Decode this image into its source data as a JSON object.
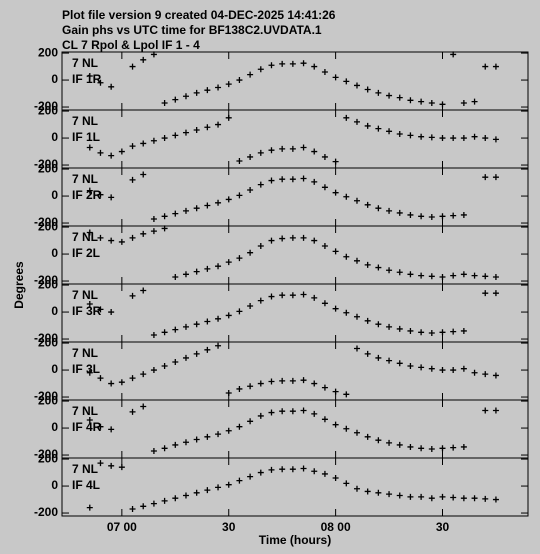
{
  "title_lines": [
    "Plot file version 9  created 04-DEC-2025 14:41:26",
    "Gain phs vs UTC time for BF138C2.UVDATA.1",
    "CL 7  Rpol & Lpol  IF 1 - 4"
  ],
  "xlabel": "Time (hours)",
  "ylabel": "Degrees",
  "chart_data": [
    {
      "type": "scatter",
      "label": "7 NL",
      "sublabel": "IF 1R",
      "x": [
        6.85,
        6.9,
        6.95,
        7.0,
        7.05,
        7.1,
        7.15,
        7.2,
        7.25,
        7.3,
        7.35,
        7.4,
        7.45,
        7.5,
        7.55,
        7.6,
        7.65,
        7.7,
        7.75,
        7.8,
        7.85,
        7.9,
        7.95,
        8.0,
        8.05,
        8.1,
        8.15,
        8.2,
        8.25,
        8.3,
        8.35,
        8.4,
        8.45,
        8.5,
        8.55,
        8.6,
        8.65,
        8.7,
        8.75
      ],
      "values": [
        30,
        -20,
        -50,
        null,
        100,
        150,
        190,
        -170,
        -145,
        -120,
        -95,
        -75,
        -55,
        -30,
        0,
        40,
        80,
        110,
        120,
        120,
        125,
        100,
        60,
        20,
        -10,
        -40,
        -70,
        -95,
        -115,
        -130,
        -150,
        -160,
        -170,
        -180,
        190,
        -170,
        -160,
        100,
        100
      ],
      "color": "#000000",
      "xlim": [
        6.72,
        8.9
      ],
      "ylim": [
        -222,
        208
      ],
      "xticks": [
        {
          "value": 7.0,
          "label": "07 00"
        },
        {
          "value": 7.5,
          "label": "30"
        },
        {
          "value": 8.0,
          "label": "08 00"
        },
        {
          "value": 8.5,
          "label": "30"
        }
      ],
      "yticks": [
        -200,
        0,
        200
      ]
    },
    {
      "type": "scatter",
      "label": "7 NL",
      "sublabel": "IF 1L",
      "x": [
        6.85,
        6.9,
        6.95,
        7.0,
        7.05,
        7.1,
        7.15,
        7.2,
        7.25,
        7.3,
        7.35,
        7.4,
        7.45,
        7.5,
        7.55,
        7.6,
        7.65,
        7.7,
        7.75,
        7.8,
        7.85,
        7.9,
        7.95,
        8.0,
        8.05,
        8.1,
        8.15,
        8.2,
        8.25,
        8.3,
        8.35,
        8.4,
        8.45,
        8.5,
        8.55,
        8.6,
        8.65,
        8.7,
        8.75
      ],
      "values": [
        -70,
        -110,
        -130,
        -100,
        -60,
        -40,
        -20,
        0,
        20,
        40,
        60,
        80,
        100,
        150,
        -170,
        -140,
        -110,
        -90,
        -80,
        -80,
        -70,
        -100,
        -140,
        -175,
        150,
        120,
        90,
        70,
        50,
        30,
        20,
        10,
        5,
        0,
        0,
        0,
        10,
        0,
        -10
      ],
      "color": "#000000",
      "xlim": [
        6.72,
        8.9
      ],
      "ylim": [
        -222,
        208
      ],
      "xticks": [
        {
          "value": 7.0,
          "label": "07 00"
        },
        {
          "value": 7.5,
          "label": "30"
        },
        {
          "value": 8.0,
          "label": "08 00"
        },
        {
          "value": 8.5,
          "label": "30"
        }
      ],
      "yticks": [
        -200,
        0,
        200
      ]
    },
    {
      "type": "scatter",
      "label": "7 NL",
      "sublabel": "IF 2R",
      "x": [
        6.85,
        6.9,
        6.95,
        7.0,
        7.05,
        7.1,
        7.15,
        7.2,
        7.25,
        7.3,
        7.35,
        7.4,
        7.45,
        7.5,
        7.55,
        7.6,
        7.65,
        7.7,
        7.75,
        7.8,
        7.85,
        7.9,
        7.95,
        8.0,
        8.05,
        8.1,
        8.15,
        8.2,
        8.25,
        8.3,
        8.35,
        8.4,
        8.45,
        8.5,
        8.55,
        8.6,
        8.65,
        8.7,
        8.75
      ],
      "values": [
        40,
        10,
        -10,
        null,
        120,
        160,
        -170,
        -150,
        -130,
        -110,
        -90,
        -70,
        -50,
        -25,
        5,
        45,
        85,
        115,
        125,
        125,
        130,
        105,
        65,
        25,
        -5,
        -35,
        -65,
        -90,
        -110,
        -125,
        -140,
        -150,
        -155,
        -150,
        -145,
        -140,
        null,
        140,
        140
      ],
      "color": "#000000",
      "xlim": [
        6.72,
        8.9
      ],
      "ylim": [
        -222,
        208
      ],
      "xticks": [
        {
          "value": 7.0,
          "label": "07 00"
        },
        {
          "value": 7.5,
          "label": "30"
        },
        {
          "value": 8.0,
          "label": "08 00"
        },
        {
          "value": 8.5,
          "label": "30"
        }
      ],
      "yticks": [
        -200,
        0,
        200
      ]
    },
    {
      "type": "scatter",
      "label": "7 NL",
      "sublabel": "IF 2L",
      "x": [
        6.85,
        6.9,
        6.95,
        7.0,
        7.05,
        7.1,
        7.15,
        7.2,
        7.25,
        7.3,
        7.35,
        7.4,
        7.45,
        7.5,
        7.55,
        7.6,
        7.65,
        7.7,
        7.75,
        7.8,
        7.85,
        7.9,
        7.95,
        8.0,
        8.05,
        8.1,
        8.15,
        8.2,
        8.25,
        8.3,
        8.35,
        8.4,
        8.45,
        8.5,
        8.55,
        8.6,
        8.65,
        8.7,
        8.75
      ],
      "values": [
        160,
        120,
        100,
        90,
        120,
        150,
        170,
        190,
        -170,
        -150,
        -130,
        -110,
        -90,
        -60,
        -30,
        10,
        60,
        100,
        115,
        120,
        120,
        100,
        60,
        20,
        -20,
        -50,
        -80,
        -100,
        -120,
        -135,
        -150,
        -160,
        -165,
        -170,
        -160,
        -150,
        -160,
        -165,
        -170
      ],
      "color": "#000000",
      "xlim": [
        6.72,
        8.9
      ],
      "ylim": [
        -222,
        208
      ],
      "xticks": [
        {
          "value": 7.0,
          "label": "07 00"
        },
        {
          "value": 7.5,
          "label": "30"
        },
        {
          "value": 8.0,
          "label": "08 00"
        },
        {
          "value": 8.5,
          "label": "30"
        }
      ],
      "yticks": [
        -200,
        0,
        200
      ]
    },
    {
      "type": "scatter",
      "label": "7 NL",
      "sublabel": "IF 3R",
      "x": [
        6.85,
        6.9,
        6.95,
        7.0,
        7.05,
        7.1,
        7.15,
        7.2,
        7.25,
        7.3,
        7.35,
        7.4,
        7.45,
        7.5,
        7.55,
        7.6,
        7.65,
        7.7,
        7.75,
        7.8,
        7.85,
        7.9,
        7.95,
        8.0,
        8.05,
        8.1,
        8.15,
        8.2,
        8.25,
        8.3,
        8.35,
        8.4,
        8.45,
        8.5,
        8.55,
        8.6,
        8.65,
        8.7,
        8.75
      ],
      "values": [
        60,
        20,
        0,
        null,
        120,
        160,
        -170,
        -150,
        -130,
        -110,
        -90,
        -70,
        -50,
        -25,
        5,
        45,
        85,
        115,
        125,
        125,
        130,
        105,
        65,
        25,
        -5,
        -35,
        -65,
        -90,
        -110,
        -125,
        -140,
        -150,
        -155,
        -150,
        -145,
        -140,
        null,
        140,
        140
      ],
      "color": "#000000",
      "xlim": [
        6.72,
        8.9
      ],
      "ylim": [
        -222,
        208
      ],
      "xticks": [
        {
          "value": 7.0,
          "label": "07 00"
        },
        {
          "value": 7.5,
          "label": "30"
        },
        {
          "value": 8.0,
          "label": "08 00"
        },
        {
          "value": 8.5,
          "label": "30"
        }
      ],
      "yticks": [
        -200,
        0,
        200
      ]
    },
    {
      "type": "scatter",
      "label": "7 NL",
      "sublabel": "IF 3L",
      "x": [
        6.85,
        6.9,
        6.95,
        7.0,
        7.05,
        7.1,
        7.15,
        7.2,
        7.25,
        7.3,
        7.35,
        7.4,
        7.45,
        7.5,
        7.55,
        7.6,
        7.65,
        7.7,
        7.75,
        7.8,
        7.85,
        7.9,
        7.95,
        8.0,
        8.05,
        8.1,
        8.15,
        8.2,
        8.25,
        8.3,
        8.35,
        8.4,
        8.45,
        8.5,
        8.55,
        8.6,
        8.65,
        8.7,
        8.75
      ],
      "values": [
        -20,
        -60,
        -100,
        -90,
        -60,
        -30,
        0,
        30,
        60,
        90,
        120,
        150,
        180,
        -170,
        -140,
        -120,
        -100,
        -85,
        -80,
        -80,
        -75,
        -100,
        -130,
        -160,
        -180,
        160,
        120,
        90,
        70,
        50,
        30,
        20,
        10,
        0,
        0,
        10,
        -20,
        -30,
        -40
      ],
      "color": "#000000",
      "xlim": [
        6.72,
        8.9
      ],
      "ylim": [
        -222,
        208
      ],
      "xticks": [
        {
          "value": 7.0,
          "label": "07 00"
        },
        {
          "value": 7.5,
          "label": "30"
        },
        {
          "value": 8.0,
          "label": "08 00"
        },
        {
          "value": 8.5,
          "label": "30"
        }
      ],
      "yticks": [
        -200,
        0,
        200
      ]
    },
    {
      "type": "scatter",
      "label": "7 NL",
      "sublabel": "IF 4R",
      "x": [
        6.85,
        6.9,
        6.95,
        7.0,
        7.05,
        7.1,
        7.15,
        7.2,
        7.25,
        7.3,
        7.35,
        7.4,
        7.45,
        7.5,
        7.55,
        7.6,
        7.65,
        7.7,
        7.75,
        7.8,
        7.85,
        7.9,
        7.95,
        8.0,
        8.05,
        8.1,
        8.15,
        8.2,
        8.25,
        8.3,
        8.35,
        8.4,
        8.45,
        8.5,
        8.55,
        8.6,
        8.65,
        8.7,
        8.75
      ],
      "values": [
        60,
        10,
        -10,
        null,
        120,
        160,
        -170,
        -150,
        -125,
        -105,
        -85,
        -65,
        -45,
        -20,
        10,
        50,
        90,
        115,
        125,
        125,
        130,
        105,
        65,
        25,
        -5,
        -35,
        -65,
        -90,
        -110,
        -125,
        -140,
        -150,
        -155,
        -150,
        -145,
        -140,
        null,
        130,
        130
      ],
      "color": "#000000",
      "xlim": [
        6.72,
        8.9
      ],
      "ylim": [
        -222,
        208
      ],
      "xticks": [
        {
          "value": 7.0,
          "label": "07 00"
        },
        {
          "value": 7.5,
          "label": "30"
        },
        {
          "value": 8.0,
          "label": "08 00"
        },
        {
          "value": 8.5,
          "label": "30"
        }
      ],
      "yticks": [
        -200,
        0,
        200
      ]
    },
    {
      "type": "scatter",
      "label": "7 NL",
      "sublabel": "IF 4L",
      "x": [
        6.85,
        6.9,
        6.95,
        7.0,
        7.05,
        7.1,
        7.15,
        7.2,
        7.25,
        7.3,
        7.35,
        7.4,
        7.45,
        7.5,
        7.55,
        7.6,
        7.65,
        7.7,
        7.75,
        7.8,
        7.85,
        7.9,
        7.95,
        8.0,
        8.05,
        8.1,
        8.15,
        8.2,
        8.25,
        8.3,
        8.35,
        8.4,
        8.45,
        8.5,
        8.55,
        8.6,
        8.65,
        8.7,
        8.75
      ],
      "values": [
        -160,
        170,
        150,
        140,
        -170,
        -150,
        -130,
        -110,
        -90,
        -70,
        -50,
        -30,
        -10,
        10,
        40,
        70,
        100,
        120,
        125,
        125,
        130,
        110,
        90,
        60,
        20,
        -20,
        -40,
        -50,
        -60,
        -70,
        -80,
        -80,
        -90,
        -80,
        -85,
        -90,
        -90,
        -95,
        -100
      ],
      "color": "#000000",
      "xlim": [
        6.72,
        8.9
      ],
      "ylim": [
        -222,
        208
      ],
      "xticks": [
        {
          "value": 7.0,
          "label": "07 00"
        },
        {
          "value": 7.5,
          "label": "30"
        },
        {
          "value": 8.0,
          "label": "08 00"
        },
        {
          "value": 8.5,
          "label": "30"
        }
      ],
      "yticks": [
        -200,
        0,
        200
      ]
    }
  ]
}
